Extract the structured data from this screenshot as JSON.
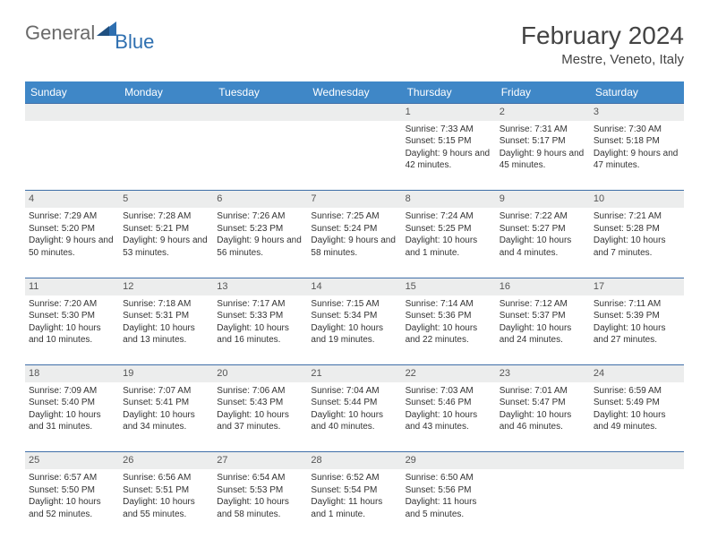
{
  "brand": {
    "part1": "General",
    "part2": "Blue"
  },
  "title": "February 2024",
  "location": "Mestre, Veneto, Italy",
  "colors": {
    "header_bg": "#3f87c7",
    "header_text": "#ffffff",
    "grid_border": "#3f6fa8",
    "daynum_bg": "#eceded",
    "body_text": "#333333",
    "logo_gray": "#6a6a6a",
    "logo_blue": "#2e6fb0",
    "page_bg": "#ffffff"
  },
  "weekdays": [
    "Sunday",
    "Monday",
    "Tuesday",
    "Wednesday",
    "Thursday",
    "Friday",
    "Saturday"
  ],
  "weeks": [
    {
      "nums": [
        "",
        "",
        "",
        "",
        "1",
        "2",
        "3"
      ],
      "cells": [
        {},
        {},
        {},
        {},
        {
          "sunrise": "7:33 AM",
          "sunset": "5:15 PM",
          "daylight": "9 hours and 42 minutes."
        },
        {
          "sunrise": "7:31 AM",
          "sunset": "5:17 PM",
          "daylight": "9 hours and 45 minutes."
        },
        {
          "sunrise": "7:30 AM",
          "sunset": "5:18 PM",
          "daylight": "9 hours and 47 minutes."
        }
      ]
    },
    {
      "nums": [
        "4",
        "5",
        "6",
        "7",
        "8",
        "9",
        "10"
      ],
      "cells": [
        {
          "sunrise": "7:29 AM",
          "sunset": "5:20 PM",
          "daylight": "9 hours and 50 minutes."
        },
        {
          "sunrise": "7:28 AM",
          "sunset": "5:21 PM",
          "daylight": "9 hours and 53 minutes."
        },
        {
          "sunrise": "7:26 AM",
          "sunset": "5:23 PM",
          "daylight": "9 hours and 56 minutes."
        },
        {
          "sunrise": "7:25 AM",
          "sunset": "5:24 PM",
          "daylight": "9 hours and 58 minutes."
        },
        {
          "sunrise": "7:24 AM",
          "sunset": "5:25 PM",
          "daylight": "10 hours and 1 minute."
        },
        {
          "sunrise": "7:22 AM",
          "sunset": "5:27 PM",
          "daylight": "10 hours and 4 minutes."
        },
        {
          "sunrise": "7:21 AM",
          "sunset": "5:28 PM",
          "daylight": "10 hours and 7 minutes."
        }
      ]
    },
    {
      "nums": [
        "11",
        "12",
        "13",
        "14",
        "15",
        "16",
        "17"
      ],
      "cells": [
        {
          "sunrise": "7:20 AM",
          "sunset": "5:30 PM",
          "daylight": "10 hours and 10 minutes."
        },
        {
          "sunrise": "7:18 AM",
          "sunset": "5:31 PM",
          "daylight": "10 hours and 13 minutes."
        },
        {
          "sunrise": "7:17 AM",
          "sunset": "5:33 PM",
          "daylight": "10 hours and 16 minutes."
        },
        {
          "sunrise": "7:15 AM",
          "sunset": "5:34 PM",
          "daylight": "10 hours and 19 minutes."
        },
        {
          "sunrise": "7:14 AM",
          "sunset": "5:36 PM",
          "daylight": "10 hours and 22 minutes."
        },
        {
          "sunrise": "7:12 AM",
          "sunset": "5:37 PM",
          "daylight": "10 hours and 24 minutes."
        },
        {
          "sunrise": "7:11 AM",
          "sunset": "5:39 PM",
          "daylight": "10 hours and 27 minutes."
        }
      ]
    },
    {
      "nums": [
        "18",
        "19",
        "20",
        "21",
        "22",
        "23",
        "24"
      ],
      "cells": [
        {
          "sunrise": "7:09 AM",
          "sunset": "5:40 PM",
          "daylight": "10 hours and 31 minutes."
        },
        {
          "sunrise": "7:07 AM",
          "sunset": "5:41 PM",
          "daylight": "10 hours and 34 minutes."
        },
        {
          "sunrise": "7:06 AM",
          "sunset": "5:43 PM",
          "daylight": "10 hours and 37 minutes."
        },
        {
          "sunrise": "7:04 AM",
          "sunset": "5:44 PM",
          "daylight": "10 hours and 40 minutes."
        },
        {
          "sunrise": "7:03 AM",
          "sunset": "5:46 PM",
          "daylight": "10 hours and 43 minutes."
        },
        {
          "sunrise": "7:01 AM",
          "sunset": "5:47 PM",
          "daylight": "10 hours and 46 minutes."
        },
        {
          "sunrise": "6:59 AM",
          "sunset": "5:49 PM",
          "daylight": "10 hours and 49 minutes."
        }
      ]
    },
    {
      "nums": [
        "25",
        "26",
        "27",
        "28",
        "29",
        "",
        ""
      ],
      "cells": [
        {
          "sunrise": "6:57 AM",
          "sunset": "5:50 PM",
          "daylight": "10 hours and 52 minutes."
        },
        {
          "sunrise": "6:56 AM",
          "sunset": "5:51 PM",
          "daylight": "10 hours and 55 minutes."
        },
        {
          "sunrise": "6:54 AM",
          "sunset": "5:53 PM",
          "daylight": "10 hours and 58 minutes."
        },
        {
          "sunrise": "6:52 AM",
          "sunset": "5:54 PM",
          "daylight": "11 hours and 1 minute."
        },
        {
          "sunrise": "6:50 AM",
          "sunset": "5:56 PM",
          "daylight": "11 hours and 5 minutes."
        },
        {},
        {}
      ]
    }
  ],
  "labels": {
    "sunrise": "Sunrise: ",
    "sunset": "Sunset: ",
    "daylight": "Daylight: "
  }
}
